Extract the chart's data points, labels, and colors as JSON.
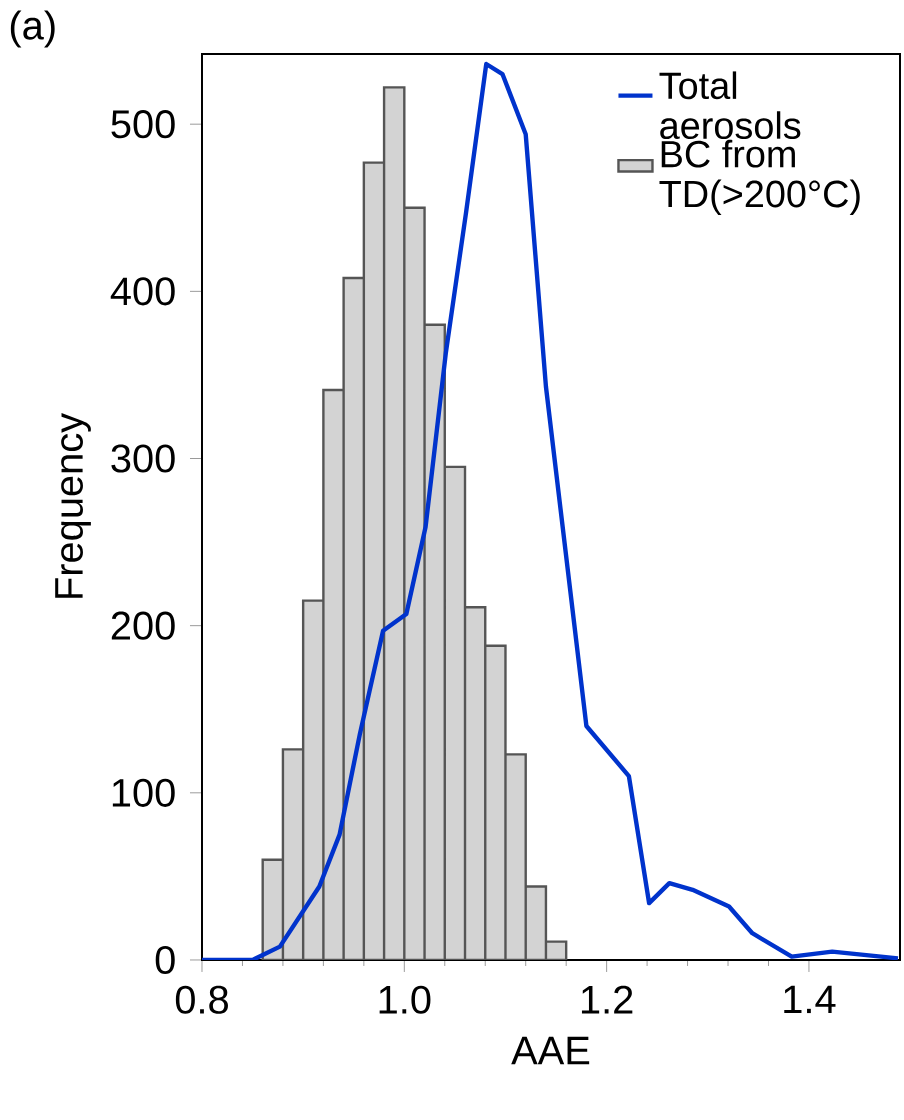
{
  "chart_data": {
    "type": "histogram",
    "title": "(a)",
    "xlabel": "AAE",
    "ylabel": "Frequency",
    "xlim": [
      0.8,
      1.49
    ],
    "ylim": [
      0,
      542
    ],
    "xticks": [
      0.8,
      {
        "value": 1.0,
        "label": "1.0"
      },
      1.2,
      1.4
    ],
    "yticks": [
      0,
      100,
      200,
      300,
      400,
      500
    ],
    "legend": "top right",
    "grid": false,
    "series": [
      {
        "type": "line",
        "name": "Total aerosols",
        "color": "#0033cc",
        "x": [
          0.8,
          0.85,
          0.877,
          0.916,
          0.936,
          0.956,
          0.979,
          1.002,
          1.021,
          1.041,
          1.061,
          1.081,
          1.097,
          1.12,
          1.14,
          1.18,
          1.222,
          1.242,
          1.262,
          1.285,
          1.321,
          1.344,
          1.383,
          1.423,
          1.488
        ],
        "values": [
          0,
          0,
          8,
          44,
          75,
          135,
          197,
          207,
          259,
          363,
          447,
          536,
          530,
          494,
          343,
          140,
          110,
          34,
          46,
          42,
          32,
          16,
          2,
          5,
          1
        ]
      },
      {
        "name": "BC from TD(>200°C)",
        "color": "#d3d3d3",
        "bins": [
          0.86,
          0.88,
          0.9,
          0.92,
          0.94,
          0.96,
          0.98,
          1.0,
          1.02,
          1.04,
          1.06,
          1.08,
          1.1,
          1.12,
          1.14,
          1.16
        ],
        "values": [
          60,
          126,
          215,
          341,
          408,
          477,
          522,
          450,
          380,
          295,
          211,
          188,
          123,
          44,
          11
        ]
      }
    ]
  }
}
